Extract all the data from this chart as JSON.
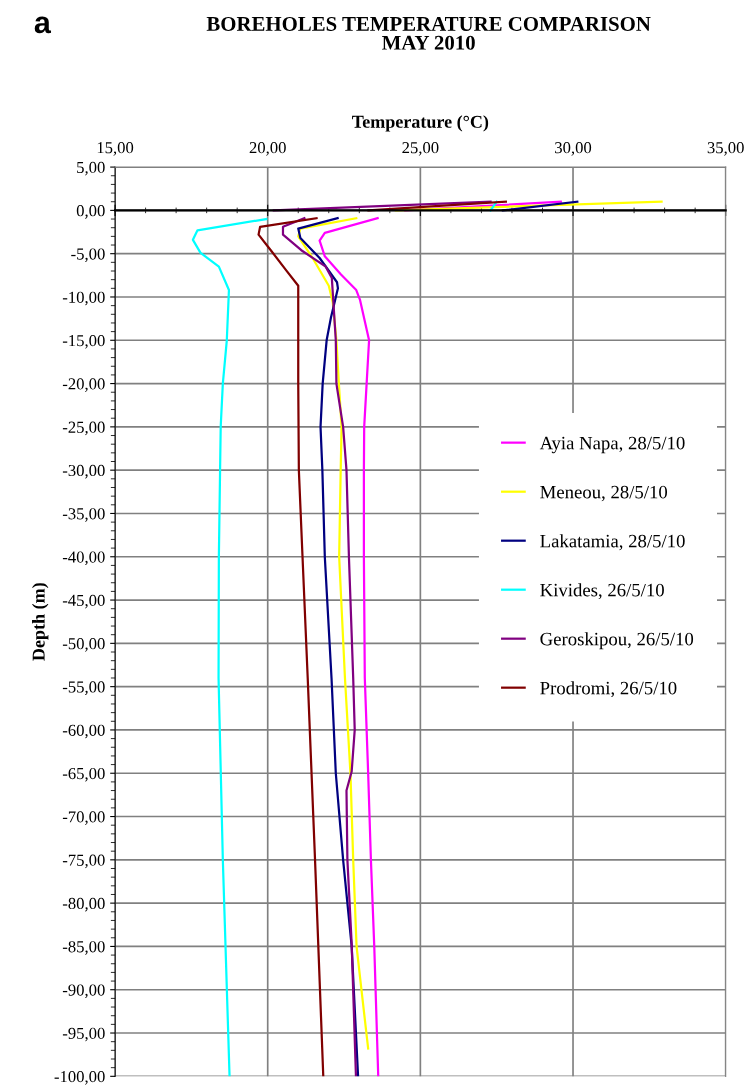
{
  "chart_data": {
    "type": "line",
    "title": "BOREHOLES TEMPERATURE COMPARISON\nMAY 2010",
    "xlabel": "Temperature (°C)",
    "ylabel": "Depth (m)",
    "annotations": [
      "a"
    ],
    "xlim": [
      15,
      35
    ],
    "xticks": [
      {
        "value": 15,
        "label": "15,00"
      },
      {
        "value": 20,
        "label": "20,00"
      },
      {
        "value": 25,
        "label": "25,00"
      },
      {
        "value": 30,
        "label": "30,00"
      },
      {
        "value": 35,
        "label": "35,00"
      }
    ],
    "ylim": [
      -100,
      5
    ],
    "yticks": [
      {
        "value": 5,
        "label": "5,00"
      },
      {
        "value": 0,
        "label": "0,00"
      },
      {
        "value": -5,
        "label": "-5,00"
      },
      {
        "value": -10,
        "label": "-10,00"
      },
      {
        "value": -15,
        "label": "-15,00"
      },
      {
        "value": -20,
        "label": "-20,00"
      },
      {
        "value": -25,
        "label": "-25,00"
      },
      {
        "value": -30,
        "label": "-30,00"
      },
      {
        "value": -35,
        "label": "-35,00"
      },
      {
        "value": -40,
        "label": "-40,00"
      },
      {
        "value": -45,
        "label": "-45,00"
      },
      {
        "value": -50,
        "label": "-50,00"
      },
      {
        "value": -55,
        "label": "-55,00"
      },
      {
        "value": -60,
        "label": "-60,00"
      },
      {
        "value": -65,
        "label": "-65,00"
      },
      {
        "value": -70,
        "label": "-70,00"
      },
      {
        "value": -75,
        "label": "-75,00"
      },
      {
        "value": -80,
        "label": "-80,00"
      },
      {
        "value": -85,
        "label": "-85,00"
      },
      {
        "value": -90,
        "label": "-90,00"
      },
      {
        "value": -95,
        "label": "-95,00"
      },
      {
        "value": -100,
        "label": "-100,00"
      }
    ],
    "grid": true,
    "legend": "right",
    "marker": "none",
    "line_style": "solid",
    "series": [
      {
        "name": "Ayia Napa, 28/5/10",
        "color": "#ff00ff",
        "x": [
          29.6,
          24.5,
          null,
          23.6,
          21.87,
          21.7,
          21.87,
          22.4,
          22.9,
          23.02,
          23.32,
          23.24,
          23.16,
          23.15,
          23.15,
          23.18,
          23.29,
          23.38,
          23.49,
          23.62
        ],
        "values": [
          1,
          0,
          null,
          -0.9,
          -2.6,
          -3.5,
          -5.3,
          -7.4,
          -9.2,
          -10.3,
          -15,
          -20,
          -25,
          -30,
          -40,
          -54,
          -65,
          -75,
          -85,
          -100
        ]
      },
      {
        "name": "Meneou, 28/5/10",
        "color": "#ffff00",
        "x": [
          32.9,
          24.2,
          null,
          22.9,
          21.07,
          21.0,
          21.47,
          22.0,
          22.13,
          22.25,
          22.33,
          22.42,
          22.39,
          22.34,
          22.53,
          22.71,
          22.8,
          22.91,
          23.07,
          23.29
        ],
        "values": [
          1,
          0,
          null,
          -0.9,
          -2.1,
          -3,
          -5.5,
          -8.7,
          -10.6,
          -15,
          -20,
          -25,
          -30,
          -40,
          -54,
          -65,
          -75,
          -85,
          -90,
          -96.8
        ]
      },
      {
        "name": "Lakatamia, 28/5/10",
        "color": "#000080",
        "x": [
          30.14,
          27.7,
          null,
          22.29,
          21.0,
          21.07,
          21.7,
          22.27,
          22.3,
          22.07,
          21.93,
          21.8,
          21.73,
          21.79,
          21.87,
          22.09,
          22.23,
          22.47,
          22.75,
          22.96
        ],
        "values": [
          1,
          0,
          null,
          -0.9,
          -2.1,
          -3.2,
          -5.5,
          -8.3,
          -9,
          -12.4,
          -15,
          -20,
          -25,
          -30,
          -40,
          -54,
          -65,
          -75,
          -85,
          -100
        ]
      },
      {
        "name": "Kivides, 26/5/10",
        "color": "#00ffff",
        "x": [
          27.5,
          27.3,
          null,
          19.95,
          17.7,
          17.55,
          17.8,
          18.4,
          18.73,
          18.66,
          18.53,
          18.46,
          18.44,
          18.4,
          18.39,
          18.53,
          18.75
        ],
        "values": [
          1,
          0,
          null,
          -1,
          -2.3,
          -3.4,
          -4.9,
          -6.5,
          -9.2,
          -15,
          -20,
          -25,
          -30,
          -40,
          -54,
          -75,
          -100
        ]
      },
      {
        "name": "Geroskipou, 26/5/10",
        "color": "#800080",
        "x": [
          27.3,
          20.2,
          null,
          21.2,
          20.5,
          20.5,
          21.1,
          21.9,
          22.1,
          22.23,
          22.25,
          22.47,
          22.58,
          22.66,
          22.8,
          22.85,
          22.75,
          22.58,
          22.61,
          22.75,
          22.89
        ],
        "values": [
          1,
          0,
          null,
          -0.9,
          -1.9,
          -2.8,
          -4.6,
          -6.5,
          -7.8,
          -15,
          -20,
          -25,
          -30,
          -40,
          -54,
          -60,
          -64.8,
          -67,
          -75,
          -84.7,
          -100
        ]
      },
      {
        "name": "Prodromi, 26/5/10",
        "color": "#800000",
        "x": [
          27.8,
          23.3,
          null,
          21.6,
          19.75,
          19.7,
          20.1,
          20.6,
          21.0,
          21.0,
          21.0,
          21.02,
          21.14,
          21.31,
          21.55,
          21.82
        ],
        "values": [
          1,
          0,
          null,
          -0.9,
          -1.9,
          -2.8,
          -4.6,
          -6.9,
          -8.7,
          -15,
          -20,
          -30,
          -40,
          -54,
          -75,
          -100
        ]
      }
    ]
  }
}
